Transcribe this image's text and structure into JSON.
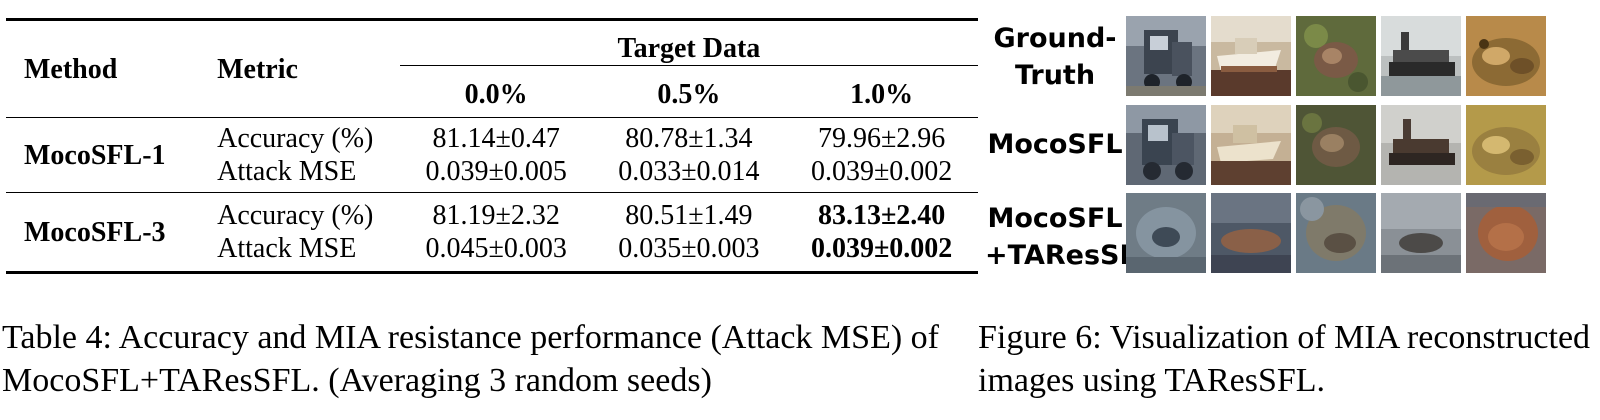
{
  "table": {
    "header": {
      "method": "Method",
      "metric": "Metric",
      "group": "Target Data",
      "columns": [
        "0.0%",
        "0.5%",
        "1.0%"
      ]
    },
    "rows": [
      {
        "method": "MocoSFL-1",
        "metrics": [
          "Accuracy (%)",
          "Attack MSE"
        ],
        "values": [
          [
            "81.14±0.47",
            "80.78±1.34",
            "79.96±2.96"
          ],
          [
            "0.039±0.005",
            "0.033±0.014",
            "0.039±0.002"
          ]
        ]
      },
      {
        "method": "MocoSFL-3",
        "metrics": [
          "Accuracy (%)",
          "Attack MSE"
        ],
        "values": [
          [
            "81.19±2.32",
            "80.51±1.49",
            "83.13±2.40"
          ],
          [
            "0.045±0.003",
            "0.035±0.003",
            "0.039±0.002"
          ]
        ]
      }
    ],
    "caption": "Table 4: Accuracy and MIA resistance performance (Attack MSE) of MocoSFL+TAResSFL. (Averaging 3 random seeds)"
  },
  "figure": {
    "row_labels": [
      [
        "Ground-",
        "Truth"
      ],
      [
        "MocoSFL"
      ],
      [
        "MocoSFL",
        "+TAResSFL"
      ]
    ],
    "caption": "Figure 6: Visualization of MIA reconstructed images using TAResSFL."
  }
}
